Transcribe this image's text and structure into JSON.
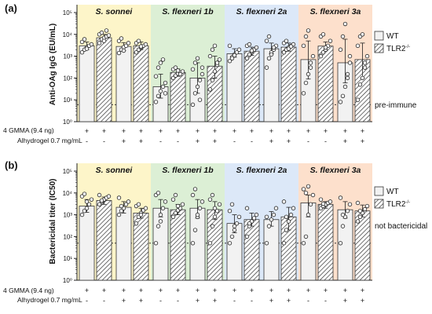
{
  "colors": {
    "panel_bg": [
      "#fdf5c9",
      "#dcefd5",
      "#dce8f8",
      "#fde0cc"
    ],
    "bar_fill": "#f2f2f2",
    "bar_stroke": "#333333",
    "dashed_line": "#333333"
  },
  "strains": [
    "S. sonnei",
    "S. flexneri 1b",
    "S. flexneri 2a",
    "S. flexneri 3a"
  ],
  "legend": {
    "wt": "WT",
    "tlr2_base": "TLR2",
    "tlr2_sup": "-/-"
  },
  "rows": {
    "gmma": "4 GMMA (9.4 ng)",
    "alhydrogel": "Alhydrogel 0.7 mg/mL"
  },
  "row_values": {
    "gmma": [
      "+",
      "+",
      "+",
      "+",
      "+",
      "+",
      "+",
      "+",
      "+",
      "+",
      "+",
      "+",
      "+",
      "+",
      "+",
      "+"
    ],
    "alhydrogel": [
      "-",
      "-",
      "+",
      "+",
      "-",
      "-",
      "+",
      "+",
      "-",
      "-",
      "+",
      "+",
      "-",
      "-",
      "+",
      "+"
    ]
  },
  "chart_data": [
    {
      "type": "bar",
      "panel_label": "(a)",
      "ylabel": "Anti-OAg IgG (EU/mL)",
      "scale": "log10",
      "ylim": [
        1,
        100000
      ],
      "yticks": [
        "10⁰",
        "10¹",
        "10²",
        "10³",
        "10⁴",
        "10⁵"
      ],
      "reference_line": {
        "value": 6,
        "label": "pre-immune"
      },
      "groups": [
        "S. sonnei",
        "S. flexneri 1b",
        "S. flexneri 2a",
        "S. flexneri 3a"
      ],
      "series": [
        {
          "name": "WT",
          "pattern": "plain",
          "values": [
            3000,
            2800,
            40,
            100,
            1300,
            2200,
            700,
            500
          ],
          "errors_low": [
            2000,
            1800,
            12,
            20,
            900,
            1300,
            90,
            60
          ],
          "errors_high": [
            4500,
            4200,
            150,
            500,
            2200,
            4000,
            5000,
            6000
          ],
          "points": [
            [
              1500,
              2000,
              2500,
              3000,
              3500,
              4500,
              6000,
              2200
            ],
            [
              1400,
              2000,
              2600,
              3000,
              4000,
              5000,
              6500,
              1800
            ],
            [
              8,
              15,
              25,
              40,
              60,
              120,
              300,
              500,
              700,
              20
            ],
            [
              6,
              20,
              40,
              80,
              150,
              250,
              500,
              800,
              10,
              300
            ],
            [
              600,
              900,
              1200,
              1500,
              2000,
              3000,
              800,
              1100
            ],
            [
              300,
              800,
              1500,
              2000,
              3000,
              5000,
              8000,
              1200,
              2500
            ],
            [
              20,
              60,
              150,
              500,
              1000,
              3000,
              8000,
              15000,
              300
            ],
            [
              8,
              15,
              40,
              150,
              500,
              2000,
              8000,
              30000,
              100,
              1000
            ]
          ]
        },
        {
          "name": "TLR2",
          "pattern": "hatched",
          "values": [
            7000,
            3000,
            180,
            350,
            1700,
            2600,
            2900,
            700
          ],
          "errors_low": [
            5000,
            2000,
            120,
            100,
            1100,
            1700,
            1900,
            100
          ],
          "errors_high": [
            10000,
            4500,
            260,
            1000,
            2600,
            4000,
            4500,
            4000
          ],
          "points": [
            [
              4000,
              6000,
              7000,
              8000,
              9000,
              10000,
              12000,
              5000,
              15000
            ],
            [
              1500,
              2000,
              2500,
              3000,
              3500,
              4000,
              5000,
              2800
            ],
            [
              100,
              130,
              160,
              180,
              200,
              250,
              300,
              220,
              150
            ],
            [
              30,
              80,
              200,
              400,
              700,
              1000,
              2000,
              3000,
              500
            ],
            [
              800,
              1200,
              1600,
              2000,
              2500,
              3000,
              3500,
              1800
            ],
            [
              1500,
              2000,
              2500,
              3000,
              3500,
              4000,
              5000,
              2200,
              2800
            ],
            [
              1000,
              1500,
              2000,
              3000,
              5000,
              8000,
              10000,
              2500
            ],
            [
              10,
              50,
              100,
              300,
              1000,
              3000,
              8000,
              10000,
              500
            ]
          ]
        }
      ]
    },
    {
      "type": "bar",
      "panel_label": "(b)",
      "ylabel": "Bactericidal titer (IC50)",
      "scale": "log10",
      "ylim": [
        1,
        100000
      ],
      "yticks": [
        "10⁰",
        "10¹",
        "10²",
        "10³",
        "10⁴",
        "10⁵"
      ],
      "reference_line": {
        "value": 50,
        "label": "not bactericidal"
      },
      "groups": [
        "S. sonnei",
        "S. flexneri 1b",
        "S. flexneri 2a",
        "S. flexneri 3a"
      ],
      "series": [
        {
          "name": "WT",
          "pattern": "plain",
          "values": [
            2500,
            2200,
            2000,
            2000,
            400,
            600,
            3500,
            1700
          ],
          "errors_low": [
            1300,
            1200,
            800,
            700,
            150,
            300,
            800,
            700
          ],
          "errors_high": [
            5000,
            4000,
            5000,
            5000,
            1000,
            1400,
            8000,
            4000
          ],
          "points": [
            [
              1000,
              1500,
              2000,
              3000,
              5000,
              7000,
              9000,
              4000
            ],
            [
              1000,
              1500,
              2000,
              3000,
              4000,
              6000,
              2500
            ],
            [
              50,
              300,
              1000,
              2000,
              4000,
              8000,
              10000,
              500
            ],
            [
              50,
              200,
              800,
              2000,
              4000,
              8000,
              15000,
              1000
            ],
            [
              50,
              100,
              200,
              400,
              800,
              1500,
              3000,
              300
            ],
            [
              50,
              300,
              600,
              1000,
              2000,
              800
            ],
            [
              50,
              100,
              1000,
              3000,
              8000,
              15000,
              10000,
              20000
            ],
            [
              50,
              300,
              800,
              1500,
              3000,
              6000,
              1000
            ]
          ]
        },
        {
          "name": "TLR2",
          "pattern": "hatched",
          "values": [
            4500,
            1200,
            1700,
            1700,
            600,
            800,
            3000,
            1500
          ],
          "errors_low": [
            3000,
            700,
            1000,
            600,
            300,
            200,
            2000,
            800
          ],
          "errors_high": [
            6500,
            2000,
            3000,
            4000,
            1200,
            2200,
            4000,
            2800
          ],
          "points": [
            [
              3000,
              4000,
              5000,
              6000,
              7000,
              8000,
              4500
            ],
            [
              400,
              800,
              1200,
              1600,
              2000,
              2500,
              3000,
              1000
            ],
            [
              800,
              1200,
              1600,
              2000,
              3000,
              5000,
              8000,
              2500
            ],
            [
              50,
              300,
              800,
              1500,
              3000,
              5000,
              8000,
              2000
            ],
            [
              100,
              300,
              500,
              700,
              1000,
              2000,
              400
            ],
            [
              50,
              200,
              500,
              1000,
              2000,
              4000,
              800
            ],
            [
              2000,
              2500,
              3000,
              3500,
              4000,
              5000,
              3200
            ],
            [
              500,
              800,
              1200,
              1800,
              2500,
              3500,
              1500
            ]
          ]
        }
      ]
    }
  ]
}
